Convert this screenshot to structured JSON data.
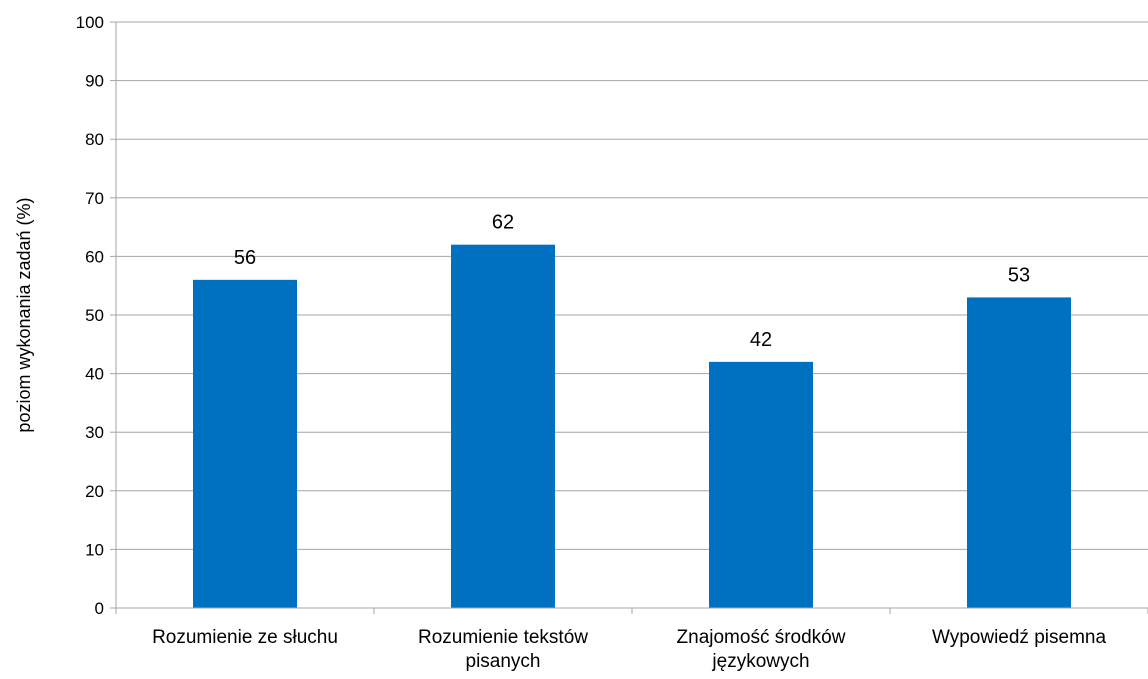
{
  "chart_data": {
    "type": "bar",
    "title": "",
    "xlabel": "",
    "ylabel": "poziom wykonania zadań (%)",
    "categories": [
      [
        "Rozumienie ze słuchu"
      ],
      [
        "Rozumienie tekstów",
        "pisanych"
      ],
      [
        "Znajomość środków",
        "językowych"
      ],
      [
        "Wypowiedź pisemna"
      ]
    ],
    "values": [
      56,
      62,
      42,
      53
    ],
    "ylim": [
      0,
      100
    ],
    "yticks": [
      0,
      10,
      20,
      30,
      40,
      50,
      60,
      70,
      80,
      90,
      100
    ],
    "grid": true,
    "legend": "none",
    "bar_color": "#0070C0",
    "grid_color": "#A6A6A6"
  }
}
